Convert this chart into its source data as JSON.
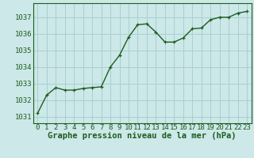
{
  "x": [
    0,
    1,
    2,
    3,
    4,
    5,
    6,
    7,
    8,
    9,
    10,
    11,
    12,
    13,
    14,
    15,
    16,
    17,
    18,
    19,
    20,
    21,
    22,
    23
  ],
  "y": [
    1031.2,
    1032.3,
    1032.75,
    1032.6,
    1032.6,
    1032.7,
    1032.75,
    1032.8,
    1034.0,
    1034.7,
    1035.8,
    1036.55,
    1036.6,
    1036.1,
    1035.5,
    1035.5,
    1035.75,
    1036.3,
    1036.35,
    1036.85,
    1037.0,
    1037.0,
    1037.25,
    1037.35
  ],
  "line_color": "#1e5c1e",
  "marker_color": "#1e5c1e",
  "bg_color": "#cce8e8",
  "grid_color": "#aacfcf",
  "ylabel_ticks": [
    1031,
    1032,
    1033,
    1034,
    1035,
    1036,
    1037
  ],
  "ylim": [
    1030.6,
    1037.85
  ],
  "xlim": [
    -0.5,
    23.5
  ],
  "xlabel": "Graphe pression niveau de la mer (hPa)",
  "xlabel_fontsize": 7.5,
  "tick_fontsize": 6.5,
  "line_width": 1.0,
  "marker_size": 3.5
}
